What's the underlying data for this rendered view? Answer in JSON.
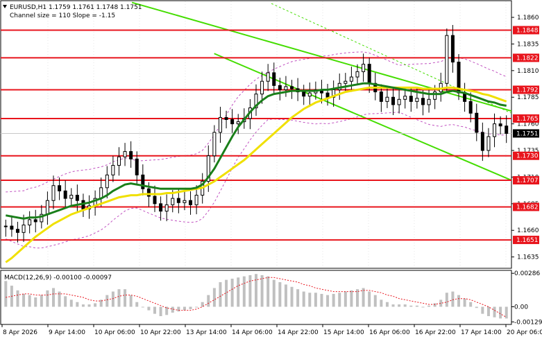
{
  "header": {
    "symbol_line": "EURUSD,H1  1.1759 1.1761 1.1748 1.1751",
    "channel_line": "Channel size = 110 Slope = -1.15"
  },
  "colors": {
    "background": "#ffffff",
    "level_line": "#e8141c",
    "level_label_bg": "#e8141c",
    "price_label_bg": "#000000",
    "ma_fast": "#1a7f1a",
    "ma_slow": "#f0e000",
    "channel": "#44dd00",
    "bollinger": "#c050c0",
    "candle": "#000000",
    "macd_hist": "#c0c0c0",
    "macd_signal": "#e8141c"
  },
  "chart_data": {
    "type": "candlestick",
    "ylim": [
      1.1625,
      1.1875
    ],
    "y_ticks": [
      "1.1860",
      "1.1835",
      "1.1810",
      "1.1785",
      "1.1760",
      "1.1735",
      "1.1710",
      "1.1685",
      "1.1660",
      "1.1635"
    ],
    "x_ticks": [
      "8 Apr 2026",
      "9 Apr 14:00",
      "10 Apr 06:00",
      "10 Apr 22:00",
      "13 Apr 14:00",
      "14 Apr 06:00",
      "14 Apr 22:00",
      "15 Apr 14:00",
      "16 Apr 06:00",
      "16 Apr 22:00",
      "17 Apr 14:00",
      "20 Apr 06:00"
    ],
    "levels": [
      1.1848,
      1.1822,
      1.1792,
      1.1765,
      1.173,
      1.1707,
      1.1682,
      1.1651
    ],
    "level_labels": [
      "1.1848",
      "1.1822",
      "1.1792",
      "1.1765",
      "1.1730",
      "1.1707",
      "1.1682",
      "1.1651"
    ],
    "last_price": 1.1751,
    "last_price_label": "1.1751",
    "close_series": [
      1.1664,
      1.1661,
      1.1658,
      1.1665,
      1.167,
      1.1668,
      1.1675,
      1.1688,
      1.1702,
      1.1697,
      1.169,
      1.1693,
      1.1688,
      1.168,
      1.1683,
      1.169,
      1.17,
      1.1712,
      1.1721,
      1.1729,
      1.1734,
      1.1727,
      1.1712,
      1.1699,
      1.1692,
      1.1685,
      1.1678,
      1.1684,
      1.169,
      1.1686,
      1.1688,
      1.1684,
      1.1693,
      1.1706,
      1.173,
      1.1752,
      1.1766,
      1.1764,
      1.176,
      1.1762,
      1.1765,
      1.1775,
      1.1788,
      1.18,
      1.1808,
      1.1796,
      1.1792,
      1.1795,
      1.1793,
      1.179,
      1.1786,
      1.1789,
      1.1792,
      1.1789,
      1.1785,
      1.1792,
      1.1798,
      1.18,
      1.1804,
      1.1809,
      1.1816,
      1.1798,
      1.179,
      1.1781,
      1.1785,
      1.1778,
      1.1783,
      1.1786,
      1.1781,
      1.1784,
      1.1778,
      1.1783,
      1.179,
      1.1798,
      1.1843,
      1.1818,
      1.1789,
      1.1781,
      1.177,
      1.1752,
      1.1735,
      1.1748,
      1.176,
      1.1758,
      1.1751
    ],
    "ma_fast_series": [
      1.1674,
      1.1673,
      1.1672,
      1.1671,
      1.1672,
      1.1672,
      1.1673,
      1.1675,
      1.1677,
      1.1679,
      1.1681,
      1.1683,
      1.1684,
      1.1685,
      1.1686,
      1.1688,
      1.169,
      1.1693,
      1.1697,
      1.17,
      1.1703,
      1.1704,
      1.1703,
      1.1702,
      1.1701,
      1.17,
      1.1699,
      1.1699,
      1.1699,
      1.1699,
      1.1699,
      1.1699,
      1.17,
      1.1703,
      1.171,
      1.1718,
      1.1728,
      1.1738,
      1.1748,
      1.1757,
      1.1764,
      1.1771,
      1.1777,
      1.1782,
      1.1786,
      1.1788,
      1.1789,
      1.179,
      1.1791,
      1.1791,
      1.1791,
      1.1791,
      1.1791,
      1.1792,
      1.1792,
      1.1793,
      1.1794,
      1.1795,
      1.1796,
      1.1797,
      1.1798,
      1.1798,
      1.1797,
      1.1796,
      1.1795,
      1.1794,
      1.1793,
      1.1792,
      1.1791,
      1.179,
      1.1789,
      1.1788,
      1.1788,
      1.1788,
      1.179,
      1.1791,
      1.179,
      1.1789,
      1.1787,
      1.1785,
      1.1783,
      1.1781,
      1.178,
      1.1778,
      1.1777
    ],
    "ma_slow_series": [
      1.163,
      1.1634,
      1.1639,
      1.1644,
      1.1649,
      1.1654,
      1.1658,
      1.1662,
      1.1666,
      1.1669,
      1.1672,
      1.1675,
      1.1677,
      1.1679,
      1.1681,
      1.1683,
      1.1685,
      1.1687,
      1.1689,
      1.1691,
      1.1692,
      1.1693,
      1.1693,
      1.1694,
      1.1694,
      1.1694,
      1.1694,
      1.1695,
      1.1695,
      1.1696,
      1.1697,
      1.1698,
      1.1699,
      1.17,
      1.1703,
      1.1706,
      1.171,
      1.1714,
      1.1718,
      1.1722,
      1.1726,
      1.1731,
      1.1736,
      1.1741,
      1.1746,
      1.1751,
      1.1756,
      1.1761,
      1.1766,
      1.177,
      1.1774,
      1.1777,
      1.178,
      1.1782,
      1.1784,
      1.1786,
      1.1788,
      1.179,
      1.1791,
      1.1792,
      1.1793,
      1.1794,
      1.1794,
      1.1794,
      1.1794,
      1.1794,
      1.1794,
      1.1794,
      1.1794,
      1.1794,
      1.1793,
      1.1793,
      1.1793,
      1.1793,
      1.1794,
      1.1794,
      1.1793,
      1.1792,
      1.1791,
      1.179,
      1.1788,
      1.1787,
      1.1785,
      1.1783,
      1.1781
    ],
    "channel_upper": {
      "x1": 0.257,
      "y1": 1.1874,
      "x2": 1.0,
      "y2": 1.1772
    },
    "channel_lower": {
      "x1": 0.418,
      "y1": 1.1826,
      "x2": 1.0,
      "y2": 1.1707
    },
    "macd": {
      "label": "MACD(12,26,9) -0.00100 -0.00097",
      "params": "MACD(12,26,9)",
      "value": -0.001,
      "signal": -0.00097,
      "ylim": [
        -0.00145,
        0.00305
      ],
      "y_ticks": [
        "0.00286",
        "0.00",
        "-0.00129"
      ],
      "hist": [
        0.0022,
        0.0018,
        0.0014,
        0.0011,
        0.001,
        0.0008,
        0.001,
        0.0014,
        0.0016,
        0.0013,
        0.0009,
        0.0006,
        0.0004,
        0.0002,
        0.0002,
        0.0003,
        0.0006,
        0.001,
        0.0013,
        0.0015,
        0.0015,
        0.001,
        0.0004,
        0.0,
        -0.0003,
        -0.0006,
        -0.0008,
        -0.0007,
        -0.0005,
        -0.0004,
        -0.0003,
        -0.0002,
        0.0,
        0.0004,
        0.001,
        0.0016,
        0.0021,
        0.0023,
        0.0024,
        0.0025,
        0.0026,
        0.0027,
        0.0028,
        0.0027,
        0.0026,
        0.0023,
        0.0021,
        0.0019,
        0.0017,
        0.0015,
        0.0013,
        0.0012,
        0.0012,
        0.0011,
        0.001,
        0.0011,
        0.0012,
        0.0013,
        0.0014,
        0.0015,
        0.0016,
        0.0013,
        0.001,
        0.0006,
        0.0004,
        0.0002,
        0.0002,
        0.0002,
        0.0001,
        0.0001,
        0.0,
        0.0001,
        0.0003,
        0.0006,
        0.0012,
        0.0013,
        0.001,
        0.0007,
        0.0004,
        -0.0001,
        -0.0006,
        -0.0008,
        -0.0009,
        -0.001,
        -0.001
      ],
      "signal_series": [
        0.0008,
        0.0009,
        0.001,
        0.0011,
        0.0011,
        0.001,
        0.001,
        0.001,
        0.0011,
        0.0011,
        0.0011,
        0.001,
        0.0009,
        0.0008,
        0.0006,
        0.0005,
        0.0005,
        0.0006,
        0.0007,
        0.0009,
        0.001,
        0.001,
        0.0009,
        0.0007,
        0.0005,
        0.0003,
        0.0001,
        -0.0001,
        -0.0002,
        -0.0003,
        -0.0003,
        -0.0003,
        -0.0002,
        0.0,
        0.0003,
        0.0006,
        0.0009,
        0.0012,
        0.0015,
        0.0018,
        0.002,
        0.0022,
        0.0023,
        0.0024,
        0.0025,
        0.0025,
        0.0024,
        0.0023,
        0.0022,
        0.0021,
        0.0019,
        0.0018,
        0.0016,
        0.0015,
        0.0014,
        0.0013,
        0.0013,
        0.0013,
        0.0013,
        0.0013,
        0.0014,
        0.0014,
        0.0013,
        0.0012,
        0.001,
        0.0009,
        0.0007,
        0.0006,
        0.0005,
        0.0004,
        0.0003,
        0.0002,
        0.0002,
        0.0003,
        0.0004,
        0.0006,
        0.0007,
        0.0007,
        0.0006,
        0.0004,
        0.0002,
        0.0,
        -0.0003,
        -0.0006,
        -0.0009
      ]
    }
  }
}
